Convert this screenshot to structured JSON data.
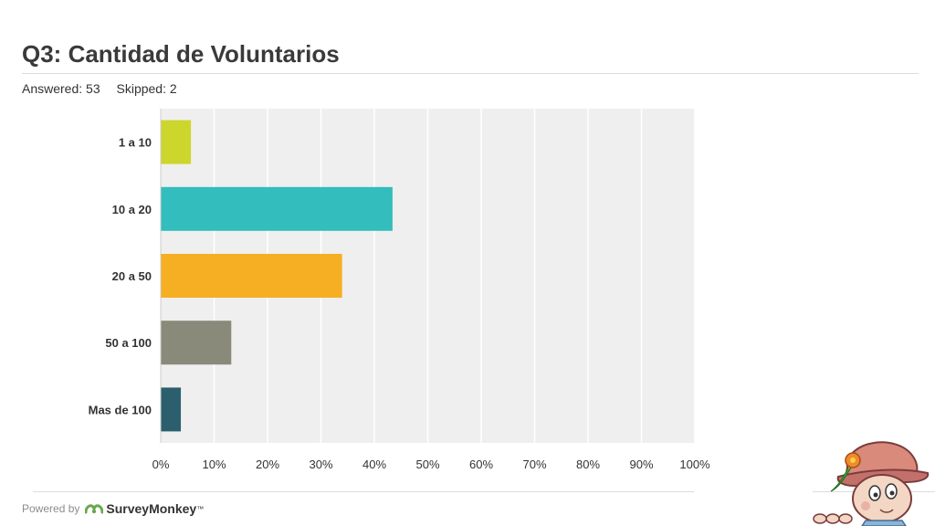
{
  "header": {
    "title": "Q3: Cantidad de Voluntarios",
    "answered": "Answered: 53",
    "skipped": "Skipped: 2"
  },
  "footer": {
    "powered_by": "Powered by",
    "brand": "SurveyMonkey",
    "brand_mark": "™"
  },
  "chart_data": {
    "type": "bar",
    "orientation": "horizontal",
    "categories": [
      "1 a 10",
      "10 a 20",
      "20 a 50",
      "50 a 100",
      "Mas de 100"
    ],
    "values": [
      5.66,
      43.4,
      33.96,
      13.21,
      3.77
    ],
    "colors": [
      "#cdd62c",
      "#33bdbd",
      "#f6ae22",
      "#8a8a7a",
      "#2c5f6d"
    ],
    "xlim": [
      0,
      100
    ],
    "xticks": [
      "0%",
      "10%",
      "20%",
      "30%",
      "40%",
      "50%",
      "60%",
      "70%",
      "80%",
      "90%",
      "100%"
    ],
    "grid": true,
    "plot_background": "#efefef",
    "gridline_color": "#ffffff"
  },
  "decorations": {
    "brand_icon": "surveymonkey-logo-icon",
    "mascot": "cartoon-child-with-hat"
  }
}
